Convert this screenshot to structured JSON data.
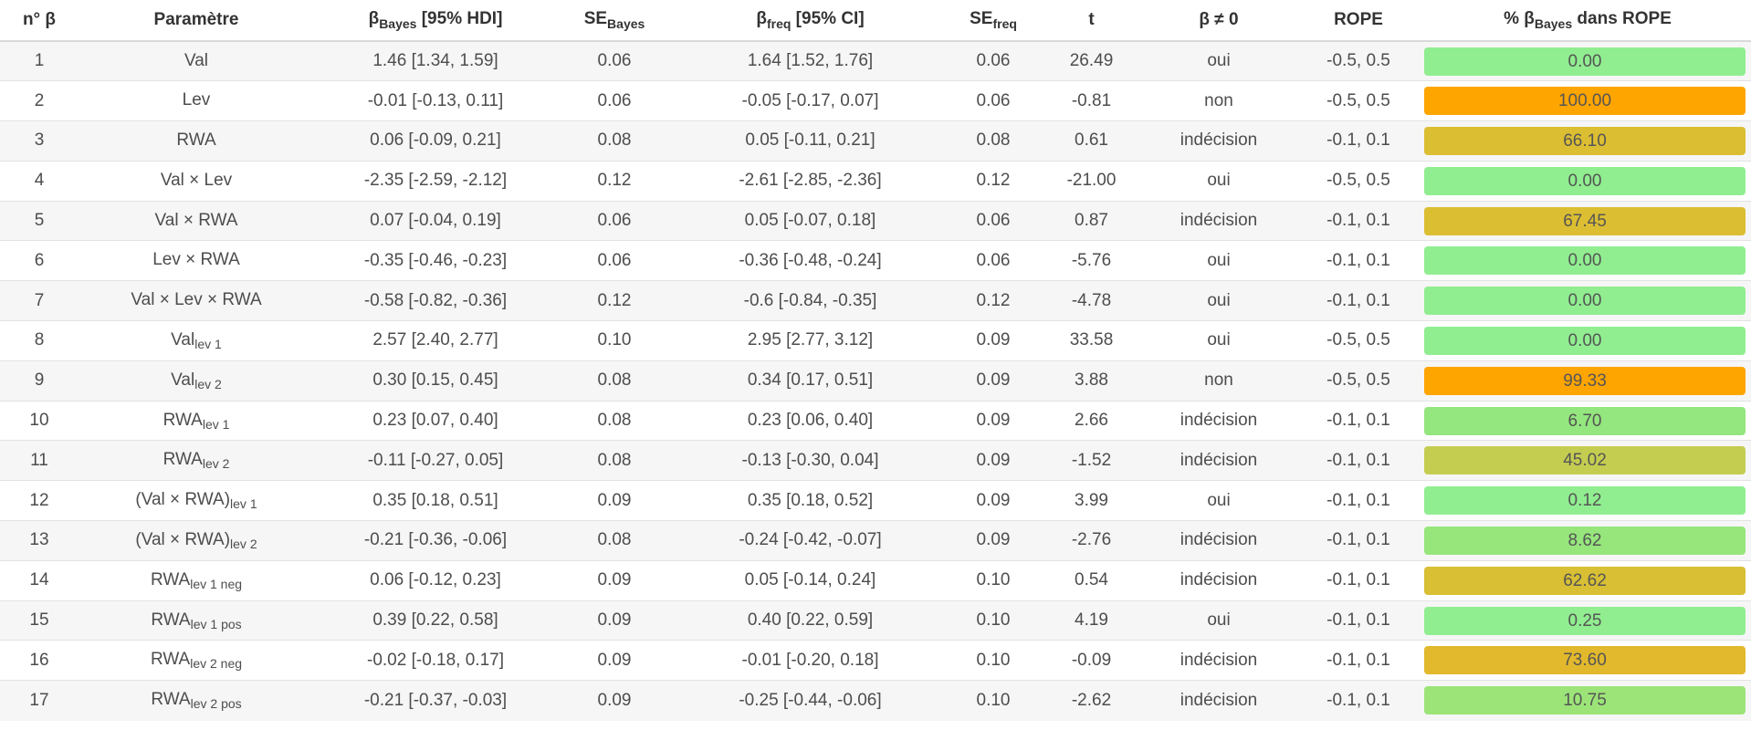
{
  "headers": {
    "num": "n° β",
    "param": "Paramètre",
    "bayes_main": "β",
    "bayes_sub": "Bayes",
    "bayes_suffix": " [95% HDI]",
    "se_bayes_main": "SE",
    "se_bayes_sub": "Bayes",
    "freq_main": "β",
    "freq_sub": "freq",
    "freq_suffix": " [95% CI]",
    "se_freq_main": "SE",
    "se_freq_sub": "freq",
    "t": "t",
    "nonzero": "β ≠ 0",
    "rope": "ROPE",
    "pct_prefix": "% β",
    "pct_sub": "Bayes",
    "pct_suffix": " dans ROPE"
  },
  "rows": [
    {
      "n": "1",
      "param": "Val",
      "psub": "",
      "bayes": "1.46 [1.34, 1.59]",
      "se_bayes": "0.06",
      "freq": "1.64 [1.52, 1.76]",
      "se_freq": "0.06",
      "t": "26.49",
      "nonzero": "oui",
      "rope": "-0.5, 0.5",
      "pct": "0.00",
      "color": "#90ee90"
    },
    {
      "n": "2",
      "param": "Lev",
      "psub": "",
      "bayes": "-0.01 [-0.13, 0.11]",
      "se_bayes": "0.06",
      "freq": "-0.05 [-0.17, 0.07]",
      "se_freq": "0.06",
      "t": "-0.81",
      "nonzero": "non",
      "rope": "-0.5, 0.5",
      "pct": "100.00",
      "color": "#ffa500"
    },
    {
      "n": "3",
      "param": "RWA",
      "psub": "",
      "bayes": "0.06 [-0.09, 0.21]",
      "se_bayes": "0.08",
      "freq": "0.05 [-0.11, 0.21]",
      "se_freq": "0.08",
      "t": "0.61",
      "nonzero": "indécision",
      "rope": "-0.1, 0.1",
      "pct": "66.10",
      "color": "#dcbe32"
    },
    {
      "n": "4",
      "param": "Val × Lev",
      "psub": "",
      "bayes": "-2.35 [-2.59, -2.12]",
      "se_bayes": "0.12",
      "freq": "-2.61 [-2.85, -2.36]",
      "se_freq": "0.12",
      "t": "-21.00",
      "nonzero": "oui",
      "rope": "-0.5, 0.5",
      "pct": "0.00",
      "color": "#90ee90"
    },
    {
      "n": "5",
      "param": "Val × RWA",
      "psub": "",
      "bayes": "0.07 [-0.04, 0.19]",
      "se_bayes": "0.06",
      "freq": "0.05 [-0.07, 0.18]",
      "se_freq": "0.06",
      "t": "0.87",
      "nonzero": "indécision",
      "rope": "-0.1, 0.1",
      "pct": "67.45",
      "color": "#dcbe32"
    },
    {
      "n": "6",
      "param": "Lev × RWA",
      "psub": "",
      "bayes": "-0.35 [-0.46, -0.23]",
      "se_bayes": "0.06",
      "freq": "-0.36 [-0.48, -0.24]",
      "se_freq": "0.06",
      "t": "-5.76",
      "nonzero": "oui",
      "rope": "-0.1, 0.1",
      "pct": "0.00",
      "color": "#90ee90"
    },
    {
      "n": "7",
      "param": "Val × Lev × RWA",
      "psub": "",
      "bayes": "-0.58 [-0.82, -0.36]",
      "se_bayes": "0.12",
      "freq": "-0.6 [-0.84, -0.35]",
      "se_freq": "0.12",
      "t": "-4.78",
      "nonzero": "oui",
      "rope": "-0.1, 0.1",
      "pct": "0.00",
      "color": "#90ee90"
    },
    {
      "n": "8",
      "param": "Val",
      "psub": "lev 1",
      "bayes": "2.57 [2.40, 2.77]",
      "se_bayes": "0.10",
      "freq": "2.95 [2.77, 3.12]",
      "se_freq": "0.09",
      "t": "33.58",
      "nonzero": "oui",
      "rope": "-0.5, 0.5",
      "pct": "0.00",
      "color": "#90ee90"
    },
    {
      "n": "9",
      "param": "Val",
      "psub": "lev 2",
      "bayes": "0.30 [0.15, 0.45]",
      "se_bayes": "0.08",
      "freq": "0.34 [0.17, 0.51]",
      "se_freq": "0.09",
      "t": "3.88",
      "nonzero": "non",
      "rope": "-0.5, 0.5",
      "pct": "99.33",
      "color": "#ffa500"
    },
    {
      "n": "10",
      "param": "RWA",
      "psub": "lev 1",
      "bayes": "0.23 [0.07, 0.40]",
      "se_bayes": "0.08",
      "freq": "0.23 [0.06, 0.40]",
      "se_freq": "0.09",
      "t": "2.66",
      "nonzero": "indécision",
      "rope": "-0.1, 0.1",
      "pct": "6.70",
      "color": "#94e67e"
    },
    {
      "n": "11",
      "param": "RWA",
      "psub": "lev 2",
      "bayes": "-0.11 [-0.27, 0.05]",
      "se_bayes": "0.08",
      "freq": "-0.13 [-0.30, 0.04]",
      "se_freq": "0.09",
      "t": "-1.52",
      "nonzero": "indécision",
      "rope": "-0.1, 0.1",
      "pct": "45.02",
      "color": "#c5cd50"
    },
    {
      "n": "12",
      "param": "(Val × RWA)",
      "psub": "lev 1",
      "bayes": "0.35 [0.18, 0.51]",
      "se_bayes": "0.09",
      "freq": "0.35 [0.18, 0.52]",
      "se_freq": "0.09",
      "t": "3.99",
      "nonzero": "oui",
      "rope": "-0.1, 0.1",
      "pct": "0.12",
      "color": "#90ee90"
    },
    {
      "n": "13",
      "param": "(Val × RWA)",
      "psub": "lev 2",
      "bayes": "-0.21 [-0.36, -0.06]",
      "se_bayes": "0.08",
      "freq": "-0.24 [-0.42, -0.07]",
      "se_freq": "0.09",
      "t": "-2.76",
      "nonzero": "indécision",
      "rope": "-0.1, 0.1",
      "pct": "8.62",
      "color": "#96e67c"
    },
    {
      "n": "14",
      "param": "RWA",
      "psub": "lev 1 neg",
      "bayes": "0.06 [-0.12, 0.23]",
      "se_bayes": "0.09",
      "freq": "0.05 [-0.14, 0.24]",
      "se_freq": "0.10",
      "t": "0.54",
      "nonzero": "indécision",
      "rope": "-0.1, 0.1",
      "pct": "62.62",
      "color": "#d8bf34"
    },
    {
      "n": "15",
      "param": "RWA",
      "psub": "lev 1 pos",
      "bayes": "0.39 [0.22, 0.58]",
      "se_bayes": "0.09",
      "freq": "0.40 [0.22, 0.59]",
      "se_freq": "0.10",
      "t": "4.19",
      "nonzero": "oui",
      "rope": "-0.1, 0.1",
      "pct": "0.25",
      "color": "#90ee90"
    },
    {
      "n": "16",
      "param": "RWA",
      "psub": "lev 2 neg",
      "bayes": "-0.02 [-0.18, 0.17]",
      "se_bayes": "0.09",
      "freq": "-0.01 [-0.20, 0.18]",
      "se_freq": "0.10",
      "t": "-0.09",
      "nonzero": "indécision",
      "rope": "-0.1, 0.1",
      "pct": "73.60",
      "color": "#e2b82c"
    },
    {
      "n": "17",
      "param": "RWA",
      "psub": "lev 2 pos",
      "bayes": "-0.21 [-0.37, -0.03]",
      "se_bayes": "0.09",
      "freq": "-0.25 [-0.44, -0.06]",
      "se_freq": "0.10",
      "t": "-2.62",
      "nonzero": "indécision",
      "rope": "-0.1, 0.1",
      "pct": "10.75",
      "color": "#9ce478"
    }
  ]
}
